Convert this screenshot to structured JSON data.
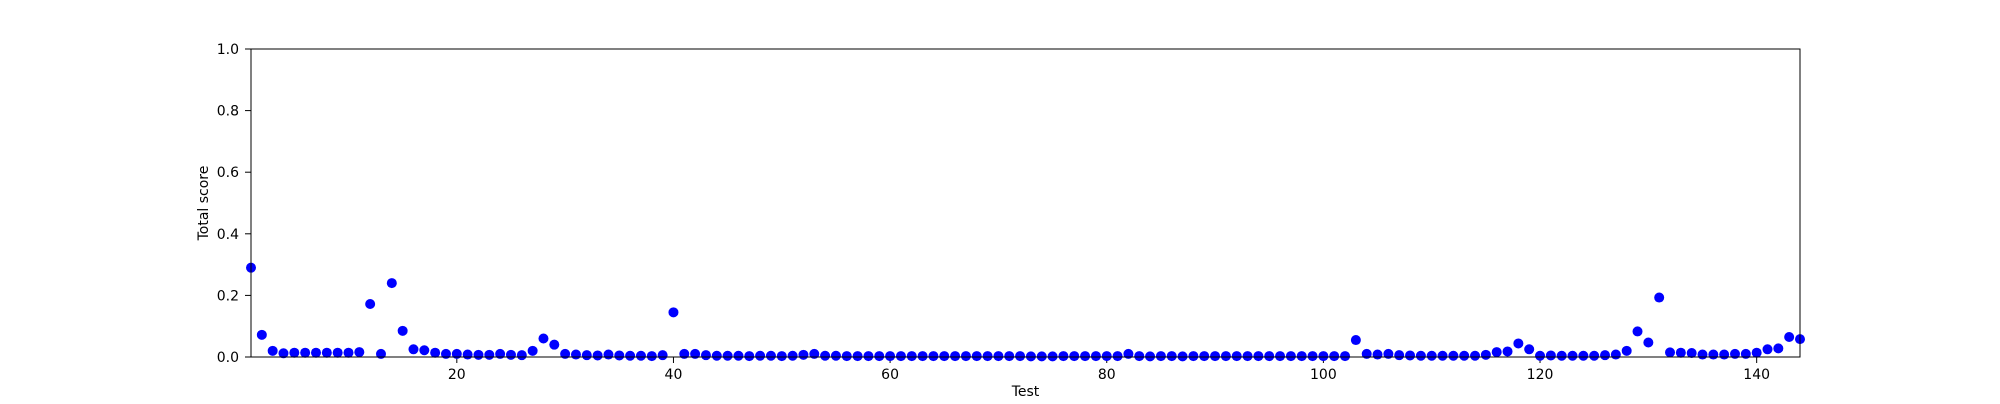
{
  "chart_data": {
    "type": "scatter",
    "title": "",
    "xlabel": "Test",
    "ylabel": "Total score",
    "xlim": [
      1,
      144
    ],
    "ylim": [
      0.0,
      1.0
    ],
    "xticks": [
      20,
      40,
      60,
      80,
      100,
      120,
      140
    ],
    "yticks": [
      0.0,
      0.2,
      0.4,
      0.6,
      0.8,
      1.0
    ],
    "xtick_labels": [
      "20",
      "40",
      "60",
      "80",
      "100",
      "120",
      "140"
    ],
    "ytick_labels": [
      "0.0",
      "0.2",
      "0.4",
      "0.6",
      "0.8",
      "1.0"
    ],
    "grid": false,
    "marker_color": "#0000ff",
    "series": [
      {
        "x": [
          1,
          2,
          3,
          4,
          5,
          6,
          7,
          8,
          9,
          10,
          11,
          12,
          13,
          14,
          15,
          16,
          17,
          18,
          19,
          20,
          21,
          22,
          23,
          24,
          25,
          26,
          27,
          28,
          29,
          30,
          31,
          32,
          33,
          34,
          35,
          36,
          37,
          38,
          39,
          40,
          41,
          42,
          43,
          44,
          45,
          46,
          47,
          48,
          49,
          50,
          51,
          52,
          53,
          54,
          55,
          56,
          57,
          58,
          59,
          60,
          61,
          62,
          63,
          64,
          65,
          66,
          67,
          68,
          69,
          70,
          71,
          72,
          73,
          74,
          75,
          76,
          77,
          78,
          79,
          80,
          81,
          82,
          83,
          84,
          85,
          86,
          87,
          88,
          89,
          90,
          91,
          92,
          93,
          94,
          95,
          96,
          97,
          98,
          99,
          100,
          101,
          102,
          103,
          104,
          105,
          106,
          107,
          108,
          109,
          110,
          111,
          112,
          113,
          114,
          115,
          116,
          117,
          118,
          119,
          120,
          121,
          122,
          123,
          124,
          125,
          126,
          127,
          128,
          129,
          130,
          131,
          132,
          133,
          134,
          135,
          136,
          137,
          138,
          139,
          140,
          141,
          142,
          143,
          144
        ],
        "y": [
          0.29,
          0.072,
          0.02,
          0.012,
          0.014,
          0.014,
          0.014,
          0.014,
          0.014,
          0.014,
          0.016,
          0.172,
          0.01,
          0.24,
          0.085,
          0.025,
          0.022,
          0.014,
          0.01,
          0.01,
          0.008,
          0.007,
          0.007,
          0.01,
          0.007,
          0.006,
          0.02,
          0.06,
          0.04,
          0.01,
          0.008,
          0.006,
          0.005,
          0.008,
          0.005,
          0.004,
          0.004,
          0.003,
          0.006,
          0.145,
          0.01,
          0.01,
          0.006,
          0.004,
          0.004,
          0.004,
          0.003,
          0.004,
          0.004,
          0.003,
          0.004,
          0.007,
          0.01,
          0.004,
          0.004,
          0.003,
          0.003,
          0.003,
          0.003,
          0.003,
          0.003,
          0.003,
          0.003,
          0.003,
          0.003,
          0.003,
          0.003,
          0.003,
          0.003,
          0.003,
          0.003,
          0.003,
          0.002,
          0.002,
          0.002,
          0.003,
          0.003,
          0.003,
          0.003,
          0.003,
          0.003,
          0.01,
          0.003,
          0.002,
          0.003,
          0.003,
          0.002,
          0.003,
          0.003,
          0.003,
          0.003,
          0.003,
          0.003,
          0.003,
          0.003,
          0.003,
          0.003,
          0.003,
          0.003,
          0.003,
          0.003,
          0.003,
          0.055,
          0.01,
          0.008,
          0.01,
          0.006,
          0.005,
          0.004,
          0.004,
          0.004,
          0.004,
          0.004,
          0.004,
          0.007,
          0.016,
          0.018,
          0.044,
          0.025,
          0.004,
          0.005,
          0.004,
          0.004,
          0.004,
          0.004,
          0.006,
          0.008,
          0.02,
          0.083,
          0.047,
          0.193,
          0.015,
          0.014,
          0.013,
          0.008,
          0.008,
          0.008,
          0.01,
          0.01,
          0.014,
          0.025,
          0.028,
          0.065,
          0.058
        ]
      }
    ]
  }
}
